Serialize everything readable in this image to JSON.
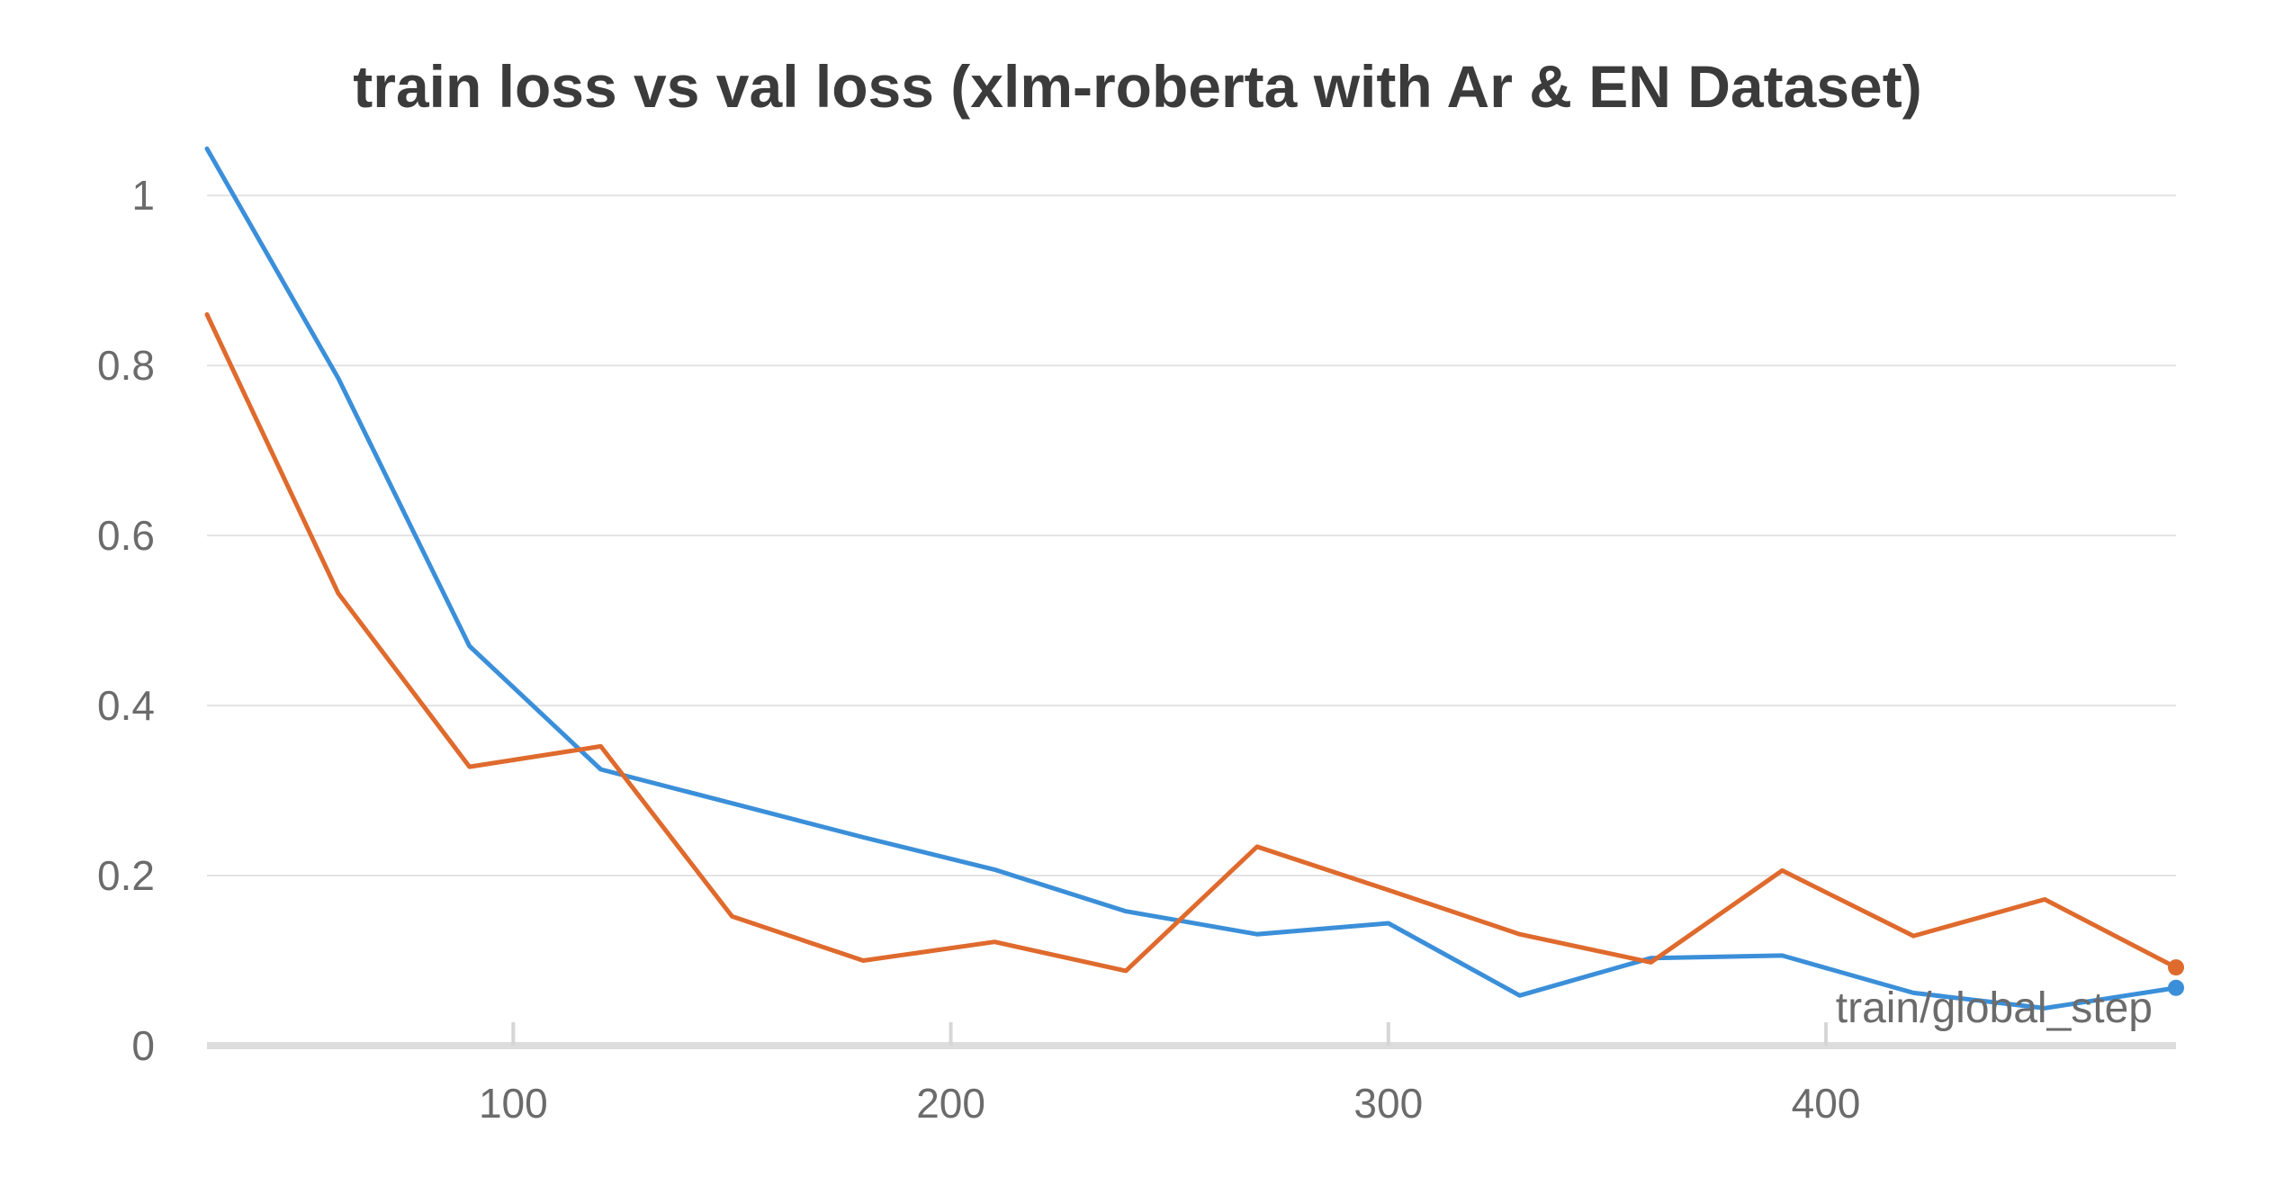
{
  "chart_data": {
    "type": "line",
    "title": "train loss vs val loss (xlm-roberta with Ar & EN Dataset)",
    "xlabel": "train/global_step",
    "ylabel": "",
    "xlim": [
      30,
      480
    ],
    "ylim": [
      0,
      1.05
    ],
    "grid": true,
    "xticks": [
      100,
      200,
      300,
      400
    ],
    "yticks": [
      0,
      0.2,
      0.4,
      0.6,
      0.8,
      1
    ],
    "ytick_labels": [
      "0",
      "0.2",
      "0.4",
      "0.6",
      "0.8",
      "1"
    ],
    "xtick_labels": [
      "100",
      "200",
      "300",
      "400"
    ],
    "series": [
      {
        "color": "#3b8fd9",
        "end_marker": true,
        "x": [
          30,
          60,
          90,
          120,
          150,
          180,
          210,
          240,
          270,
          300,
          330,
          360,
          390,
          420,
          450,
          480
        ],
        "y": [
          1.055,
          0.785,
          0.47,
          0.325,
          0.285,
          0.245,
          0.207,
          0.158,
          0.131,
          0.144,
          0.059,
          0.103,
          0.106,
          0.062,
          0.044,
          0.068
        ]
      },
      {
        "color": "#df6a2d",
        "end_marker": true,
        "x": [
          30,
          60,
          90,
          120,
          150,
          180,
          210,
          240,
          270,
          300,
          330,
          360,
          390,
          420,
          450,
          480
        ],
        "y": [
          0.86,
          0.532,
          0.328,
          0.352,
          0.152,
          0.1,
          0.122,
          0.088,
          0.234,
          0.183,
          0.131,
          0.098,
          0.206,
          0.129,
          0.172,
          0.092
        ]
      }
    ]
  }
}
